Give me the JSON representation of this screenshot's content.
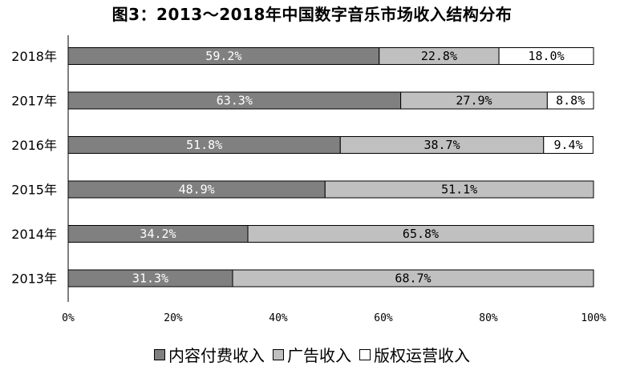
{
  "chart_data": {
    "type": "bar",
    "orientation": "horizontal",
    "stacked": true,
    "title": "图3：2013～2018年中国数字音乐市场收入结构分布",
    "categories": [
      "2018年",
      "2017年",
      "2016年",
      "2015年",
      "2014年",
      "2013年"
    ],
    "series": [
      {
        "name": "内容付费收入",
        "color": "#808080",
        "text_color": "#ffffff",
        "values": [
          59.2,
          63.3,
          51.8,
          48.9,
          34.2,
          31.3
        ],
        "labels": [
          "59.2%",
          "63.3%",
          "51.8%",
          "48.9%",
          "34.2%",
          "31.3%"
        ]
      },
      {
        "name": "广告收入",
        "color": "#c0c0c0",
        "text_color": "#000000",
        "values": [
          22.8,
          27.9,
          38.7,
          51.1,
          65.8,
          68.7
        ],
        "labels": [
          "22.8%",
          "27.9%",
          "38.7%",
          "51.1%",
          "65.8%",
          "68.7%"
        ]
      },
      {
        "name": "版权运营收入",
        "color": "#ffffff",
        "text_color": "#000000",
        "values": [
          18.0,
          8.8,
          9.4,
          0,
          0,
          0
        ],
        "labels": [
          "18.0%",
          "8.8%",
          "9.4%",
          "",
          "",
          ""
        ]
      }
    ],
    "xlim": [
      0,
      100
    ],
    "xticks": [
      "0%",
      "20%",
      "40%",
      "60%",
      "80%",
      "100%"
    ],
    "legend_position": "bottom",
    "grid": false
  }
}
